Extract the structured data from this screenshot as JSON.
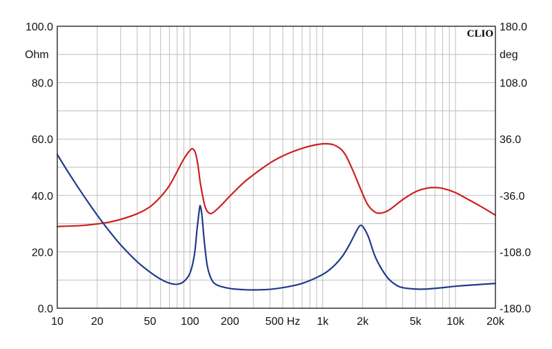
{
  "chart_data": {
    "type": "line",
    "brand": "CLIO",
    "x_scale": "log",
    "xlim": [
      10,
      20000
    ],
    "x_ticks": [
      {
        "value": 10,
        "label": "10"
      },
      {
        "value": 20,
        "label": "20"
      },
      {
        "value": 50,
        "label": "50"
      },
      {
        "value": 100,
        "label": "100"
      },
      {
        "value": 200,
        "label": "200"
      },
      {
        "value": 500,
        "label": "500 Hz"
      },
      {
        "value": 1000,
        "label": "1k"
      },
      {
        "value": 2000,
        "label": "2k"
      },
      {
        "value": 5000,
        "label": "5k"
      },
      {
        "value": 10000,
        "label": "10k"
      },
      {
        "value": 20000,
        "label": "20k"
      }
    ],
    "y_left": {
      "unit": "Ohm",
      "ylim": [
        0,
        100
      ],
      "ticks": [
        {
          "value": 0,
          "label": "0.0"
        },
        {
          "value": 20,
          "label": "20.0"
        },
        {
          "value": 40,
          "label": "40.0"
        },
        {
          "value": 60,
          "label": "60.0"
        },
        {
          "value": 80,
          "label": "80.0"
        },
        {
          "value": 100,
          "label": "100.0"
        }
      ]
    },
    "y_right": {
      "unit": "deg",
      "ylim": [
        -180,
        180
      ],
      "ticks": [
        {
          "value": -180,
          "label": "-180.0"
        },
        {
          "value": -108,
          "label": "-108.0"
        },
        {
          "value": -36,
          "label": "-36.0"
        },
        {
          "value": 36,
          "label": "36.0"
        },
        {
          "value": 108,
          "label": "108.0"
        },
        {
          "value": 180,
          "label": "180.0"
        }
      ]
    },
    "grid": true,
    "series": [
      {
        "axis": "left",
        "color": "#cc1f1f",
        "points": [
          [
            10,
            29.0
          ],
          [
            15,
            29.3
          ],
          [
            20,
            29.9
          ],
          [
            25,
            30.6
          ],
          [
            30,
            31.5
          ],
          [
            40,
            33.5
          ],
          [
            50,
            36.0
          ],
          [
            60,
            39.5
          ],
          [
            70,
            43.5
          ],
          [
            80,
            48.5
          ],
          [
            90,
            53.0
          ],
          [
            100,
            56.0
          ],
          [
            105,
            56.5
          ],
          [
            110,
            55.0
          ],
          [
            115,
            50.5
          ],
          [
            120,
            44.0
          ],
          [
            130,
            36.0
          ],
          [
            140,
            33.7
          ],
          [
            150,
            34.0
          ],
          [
            170,
            36.3
          ],
          [
            200,
            39.8
          ],
          [
            250,
            44.3
          ],
          [
            300,
            47.3
          ],
          [
            400,
            51.5
          ],
          [
            500,
            54.0
          ],
          [
            600,
            55.6
          ],
          [
            700,
            56.7
          ],
          [
            800,
            57.5
          ],
          [
            900,
            58.0
          ],
          [
            1000,
            58.3
          ],
          [
            1100,
            58.3
          ],
          [
            1200,
            58.0
          ],
          [
            1300,
            57.2
          ],
          [
            1400,
            56.0
          ],
          [
            1500,
            54.0
          ],
          [
            1700,
            48.5
          ],
          [
            2000,
            40.5
          ],
          [
            2200,
            36.5
          ],
          [
            2500,
            34.0
          ],
          [
            2800,
            33.8
          ],
          [
            3200,
            35.0
          ],
          [
            4000,
            38.5
          ],
          [
            5000,
            41.3
          ],
          [
            6000,
            42.5
          ],
          [
            7000,
            42.8
          ],
          [
            8000,
            42.5
          ],
          [
            10000,
            41.0
          ],
          [
            12000,
            39.0
          ],
          [
            15000,
            36.5
          ],
          [
            20000,
            33.0
          ]
        ]
      },
      {
        "axis": "left",
        "color": "#1f3a8a",
        "points": [
          [
            10,
            54.5
          ],
          [
            12,
            48.5
          ],
          [
            15,
            41.5
          ],
          [
            20,
            33.0
          ],
          [
            25,
            27.0
          ],
          [
            30,
            22.5
          ],
          [
            40,
            16.5
          ],
          [
            50,
            12.8
          ],
          [
            60,
            10.3
          ],
          [
            70,
            8.9
          ],
          [
            80,
            8.5
          ],
          [
            90,
            9.5
          ],
          [
            100,
            12.5
          ],
          [
            108,
            19.0
          ],
          [
            113,
            28.0
          ],
          [
            118,
            35.5
          ],
          [
            120,
            36.0
          ],
          [
            123,
            33.0
          ],
          [
            128,
            24.0
          ],
          [
            135,
            15.0
          ],
          [
            145,
            10.3
          ],
          [
            160,
            8.2
          ],
          [
            200,
            7.0
          ],
          [
            250,
            6.6
          ],
          [
            300,
            6.5
          ],
          [
            400,
            6.7
          ],
          [
            500,
            7.3
          ],
          [
            700,
            8.8
          ],
          [
            1000,
            12.0
          ],
          [
            1200,
            14.8
          ],
          [
            1400,
            18.3
          ],
          [
            1600,
            22.8
          ],
          [
            1800,
            27.5
          ],
          [
            1900,
            29.2
          ],
          [
            2000,
            29.0
          ],
          [
            2200,
            25.5
          ],
          [
            2500,
            18.0
          ],
          [
            3000,
            11.5
          ],
          [
            3500,
            8.5
          ],
          [
            4000,
            7.3
          ],
          [
            5000,
            6.8
          ],
          [
            6000,
            6.8
          ],
          [
            8000,
            7.3
          ],
          [
            10000,
            7.8
          ],
          [
            15000,
            8.4
          ],
          [
            20000,
            8.8
          ]
        ]
      }
    ]
  }
}
